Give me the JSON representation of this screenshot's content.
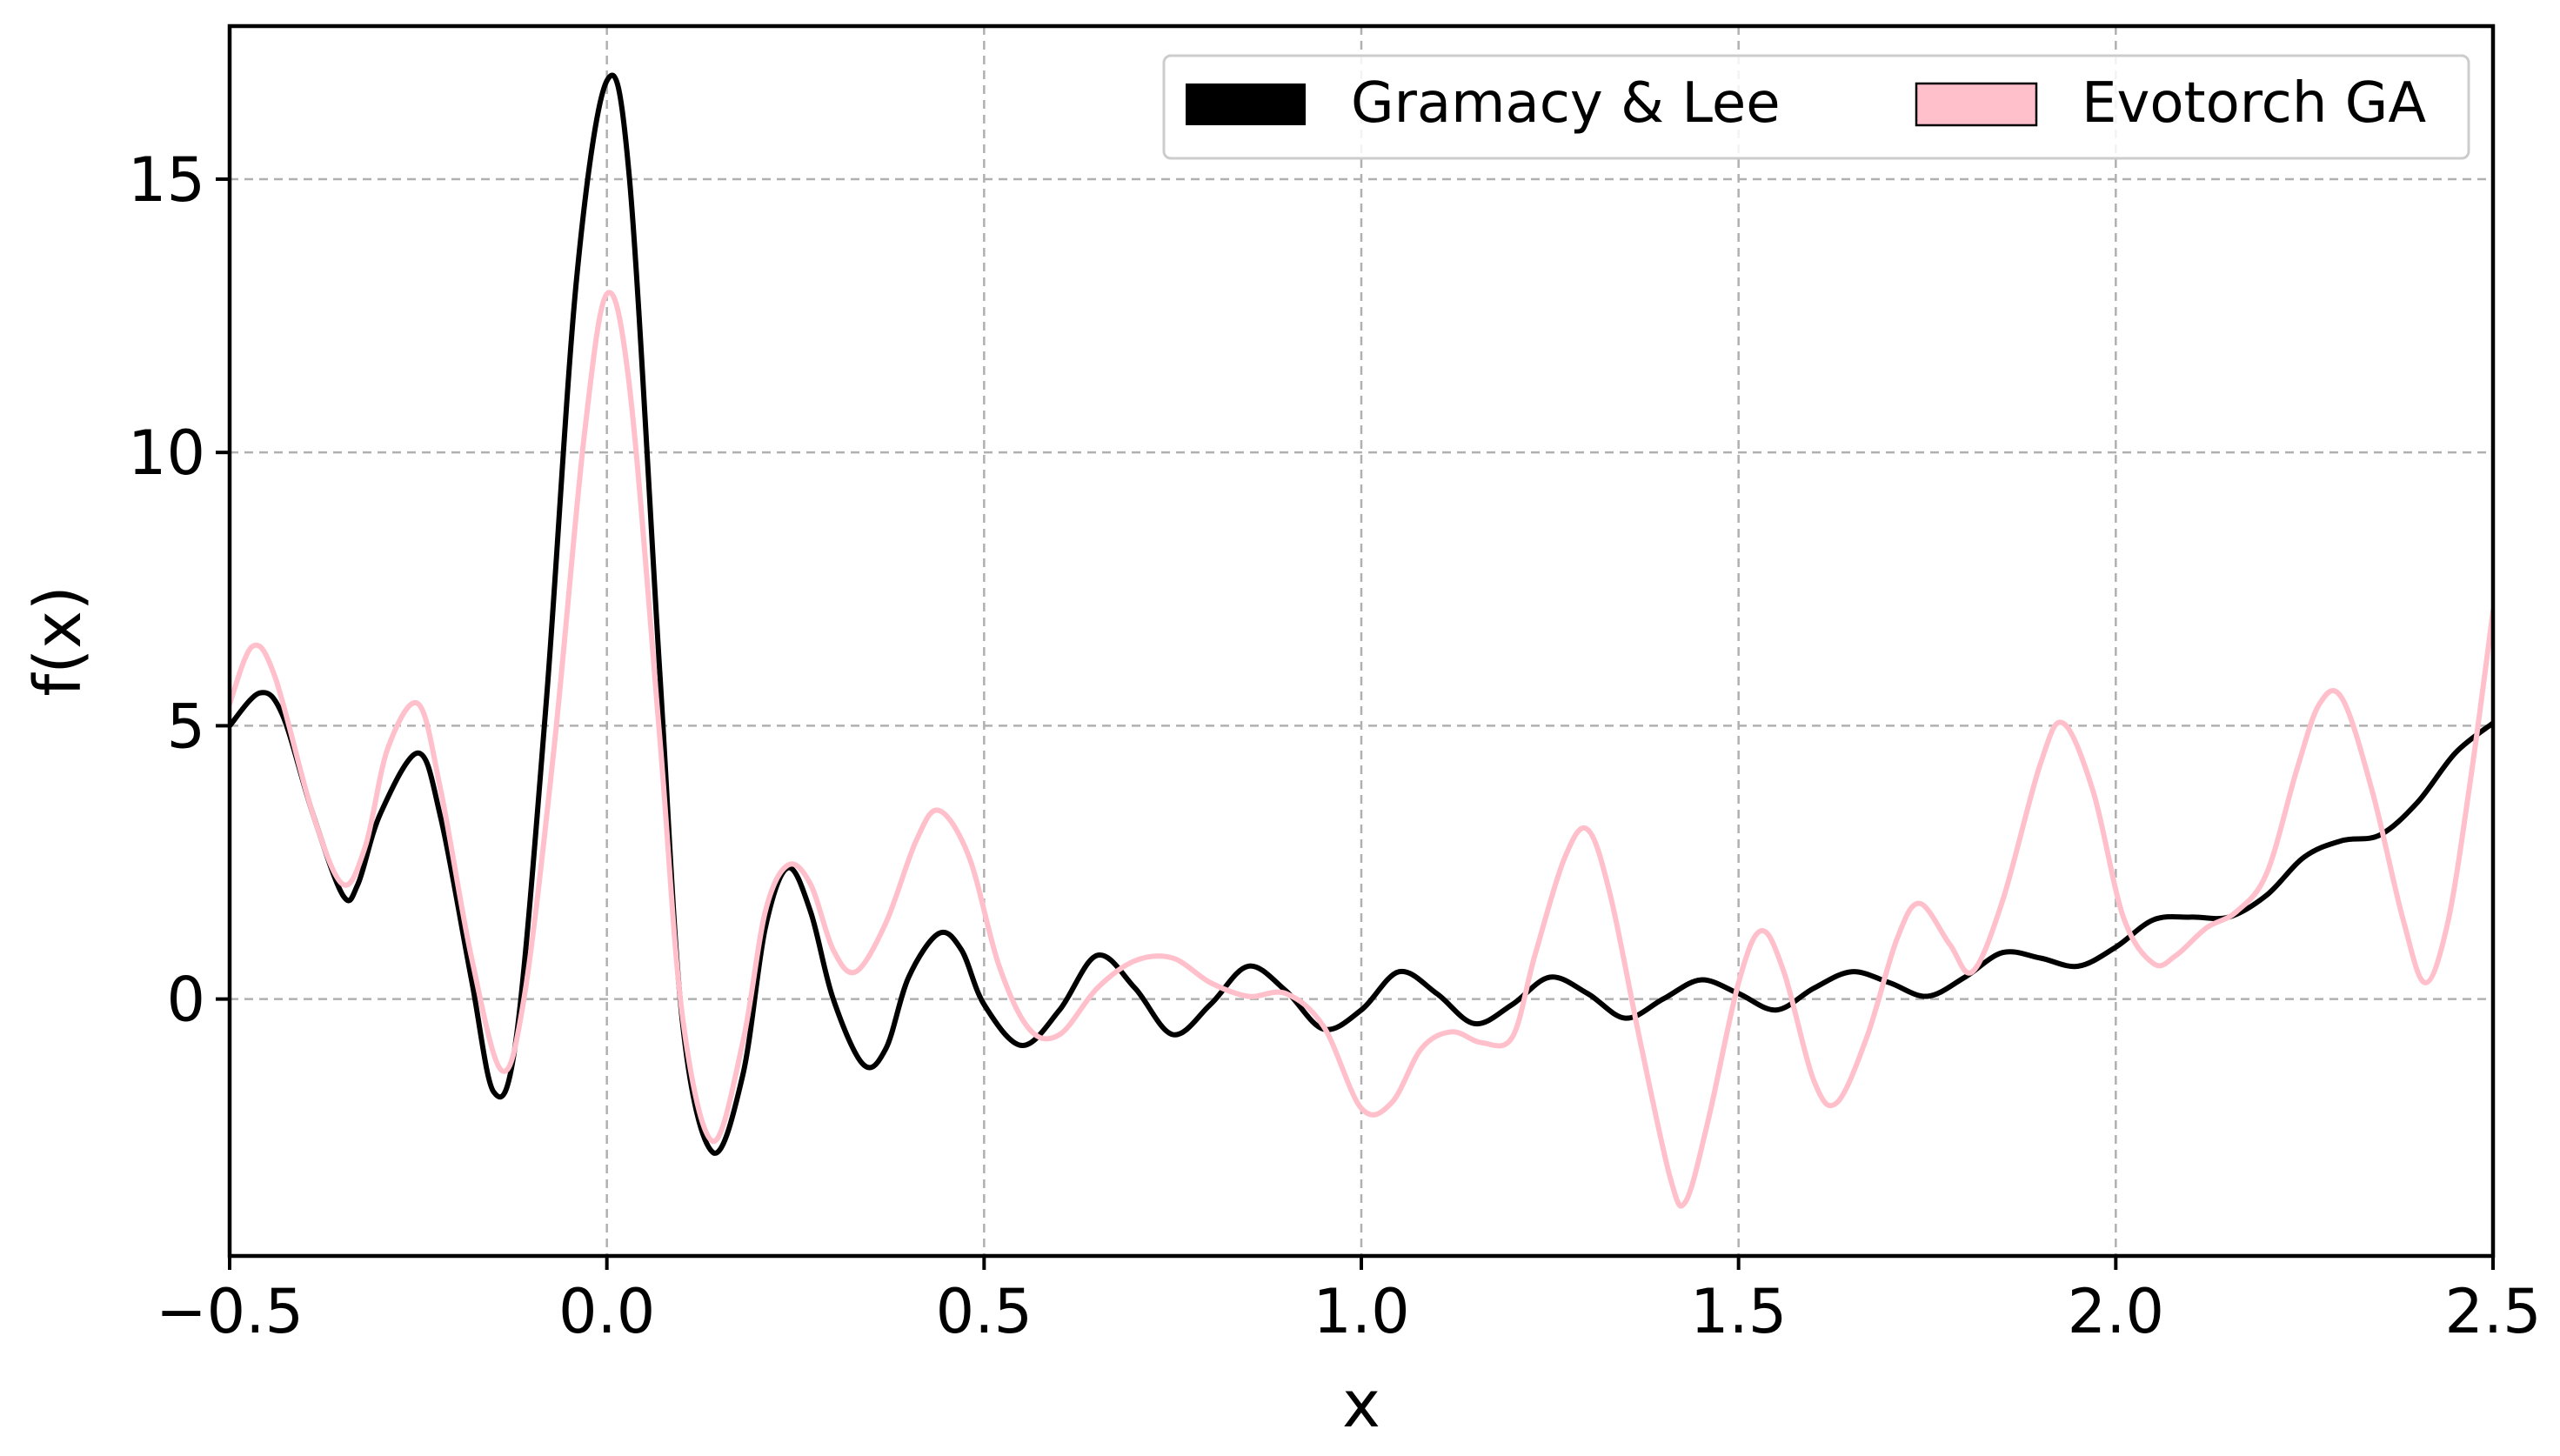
{
  "chart_data": {
    "type": "line",
    "title": "",
    "xlabel": "x",
    "ylabel": "f(x)",
    "xlim": [
      -0.5,
      2.5
    ],
    "ylim": [
      -4.7,
      17.8
    ],
    "grid": true,
    "legend_position": "top-right",
    "x_ticks": [
      -0.5,
      0.0,
      0.5,
      1.0,
      1.5,
      2.0,
      2.5
    ],
    "x_tick_labels": [
      "−0.5",
      "0.0",
      "0.5",
      "1.0",
      "1.5",
      "2.0",
      "2.5"
    ],
    "y_ticks": [
      0,
      5,
      10,
      15
    ],
    "y_tick_labels": [
      "0",
      "5",
      "10",
      "15"
    ],
    "series": [
      {
        "name": "Gramacy & Lee",
        "color": "#000000",
        "points": [
          [
            -0.5,
            5.0
          ],
          [
            -0.46,
            5.6
          ],
          [
            -0.43,
            5.2
          ],
          [
            -0.39,
            3.4
          ],
          [
            -0.35,
            1.9
          ],
          [
            -0.33,
            2.1
          ],
          [
            -0.3,
            3.4
          ],
          [
            -0.25,
            4.5
          ],
          [
            -0.22,
            3.3
          ],
          [
            -0.18,
            0.4
          ],
          [
            -0.15,
            -1.7
          ],
          [
            -0.12,
            -0.7
          ],
          [
            -0.08,
            5.5
          ],
          [
            -0.04,
            13.2
          ],
          [
            0.0,
            16.8
          ],
          [
            0.03,
            15.0
          ],
          [
            0.07,
            6.0
          ],
          [
            0.1,
            -0.4
          ],
          [
            0.14,
            -2.8
          ],
          [
            0.18,
            -1.4
          ],
          [
            0.21,
            1.3
          ],
          [
            0.24,
            2.4
          ],
          [
            0.27,
            1.6
          ],
          [
            0.3,
            0.0
          ],
          [
            0.34,
            -1.2
          ],
          [
            0.37,
            -0.9
          ],
          [
            0.4,
            0.4
          ],
          [
            0.44,
            1.2
          ],
          [
            0.47,
            0.9
          ],
          [
            0.5,
            -0.1
          ],
          [
            0.55,
            -0.85
          ],
          [
            0.6,
            -0.2
          ],
          [
            0.65,
            0.8
          ],
          [
            0.7,
            0.2
          ],
          [
            0.75,
            -0.65
          ],
          [
            0.8,
            -0.1
          ],
          [
            0.85,
            0.6
          ],
          [
            0.9,
            0.15
          ],
          [
            0.95,
            -0.55
          ],
          [
            1.0,
            -0.2
          ],
          [
            1.05,
            0.5
          ],
          [
            1.1,
            0.1
          ],
          [
            1.15,
            -0.45
          ],
          [
            1.2,
            -0.1
          ],
          [
            1.25,
            0.4
          ],
          [
            1.3,
            0.1
          ],
          [
            1.35,
            -0.35
          ],
          [
            1.4,
            0.0
          ],
          [
            1.45,
            0.35
          ],
          [
            1.5,
            0.1
          ],
          [
            1.55,
            -0.2
          ],
          [
            1.6,
            0.2
          ],
          [
            1.65,
            0.5
          ],
          [
            1.7,
            0.3
          ],
          [
            1.75,
            0.05
          ],
          [
            1.8,
            0.4
          ],
          [
            1.85,
            0.85
          ],
          [
            1.9,
            0.75
          ],
          [
            1.95,
            0.6
          ],
          [
            2.0,
            0.95
          ],
          [
            2.05,
            1.45
          ],
          [
            2.1,
            1.5
          ],
          [
            2.15,
            1.5
          ],
          [
            2.2,
            1.9
          ],
          [
            2.25,
            2.6
          ],
          [
            2.3,
            2.9
          ],
          [
            2.35,
            3.0
          ],
          [
            2.4,
            3.6
          ],
          [
            2.45,
            4.5
          ],
          [
            2.5,
            5.05
          ]
        ]
      },
      {
        "name": "Evotorch GA",
        "color": "#ffc0cb",
        "points": [
          [
            -0.5,
            5.4
          ],
          [
            -0.47,
            6.45
          ],
          [
            -0.44,
            5.9
          ],
          [
            -0.39,
            3.4
          ],
          [
            -0.35,
            2.1
          ],
          [
            -0.32,
            2.8
          ],
          [
            -0.29,
            4.6
          ],
          [
            -0.25,
            5.4
          ],
          [
            -0.22,
            3.8
          ],
          [
            -0.18,
            0.8
          ],
          [
            -0.14,
            -1.3
          ],
          [
            -0.11,
            0.0
          ],
          [
            -0.07,
            4.6
          ],
          [
            -0.03,
            10.3
          ],
          [
            0.0,
            12.9
          ],
          [
            0.03,
            11.2
          ],
          [
            0.07,
            4.8
          ],
          [
            0.1,
            -0.3
          ],
          [
            0.14,
            -2.6
          ],
          [
            0.18,
            -0.8
          ],
          [
            0.21,
            1.6
          ],
          [
            0.24,
            2.45
          ],
          [
            0.27,
            2.1
          ],
          [
            0.3,
            0.9
          ],
          [
            0.33,
            0.5
          ],
          [
            0.37,
            1.4
          ],
          [
            0.41,
            2.9
          ],
          [
            0.44,
            3.45
          ],
          [
            0.48,
            2.6
          ],
          [
            0.52,
            0.6
          ],
          [
            0.56,
            -0.55
          ],
          [
            0.6,
            -0.65
          ],
          [
            0.65,
            0.2
          ],
          [
            0.7,
            0.7
          ],
          [
            0.75,
            0.75
          ],
          [
            0.8,
            0.3
          ],
          [
            0.85,
            0.05
          ],
          [
            0.9,
            0.1
          ],
          [
            0.95,
            -0.5
          ],
          [
            1.0,
            -2.0
          ],
          [
            1.04,
            -1.9
          ],
          [
            1.08,
            -0.9
          ],
          [
            1.12,
            -0.6
          ],
          [
            1.16,
            -0.8
          ],
          [
            1.2,
            -0.7
          ],
          [
            1.23,
            0.8
          ],
          [
            1.27,
            2.6
          ],
          [
            1.3,
            3.1
          ],
          [
            1.33,
            1.9
          ],
          [
            1.37,
            -0.8
          ],
          [
            1.41,
            -3.3
          ],
          [
            1.43,
            -3.7
          ],
          [
            1.46,
            -2.2
          ],
          [
            1.5,
            0.3
          ],
          [
            1.53,
            1.25
          ],
          [
            1.56,
            0.5
          ],
          [
            1.6,
            -1.5
          ],
          [
            1.63,
            -1.9
          ],
          [
            1.67,
            -0.7
          ],
          [
            1.71,
            1.1
          ],
          [
            1.74,
            1.75
          ],
          [
            1.78,
            1.0
          ],
          [
            1.81,
            0.5
          ],
          [
            1.85,
            1.8
          ],
          [
            1.9,
            4.3
          ],
          [
            1.93,
            5.05
          ],
          [
            1.97,
            3.8
          ],
          [
            2.01,
            1.5
          ],
          [
            2.05,
            0.65
          ],
          [
            2.08,
            0.8
          ],
          [
            2.12,
            1.3
          ],
          [
            2.16,
            1.6
          ],
          [
            2.2,
            2.3
          ],
          [
            2.24,
            4.2
          ],
          [
            2.27,
            5.4
          ],
          [
            2.3,
            5.5
          ],
          [
            2.34,
            3.8
          ],
          [
            2.38,
            1.5
          ],
          [
            2.41,
            0.3
          ],
          [
            2.44,
            1.4
          ],
          [
            2.47,
            4.0
          ],
          [
            2.5,
            7.1
          ]
        ]
      }
    ]
  }
}
